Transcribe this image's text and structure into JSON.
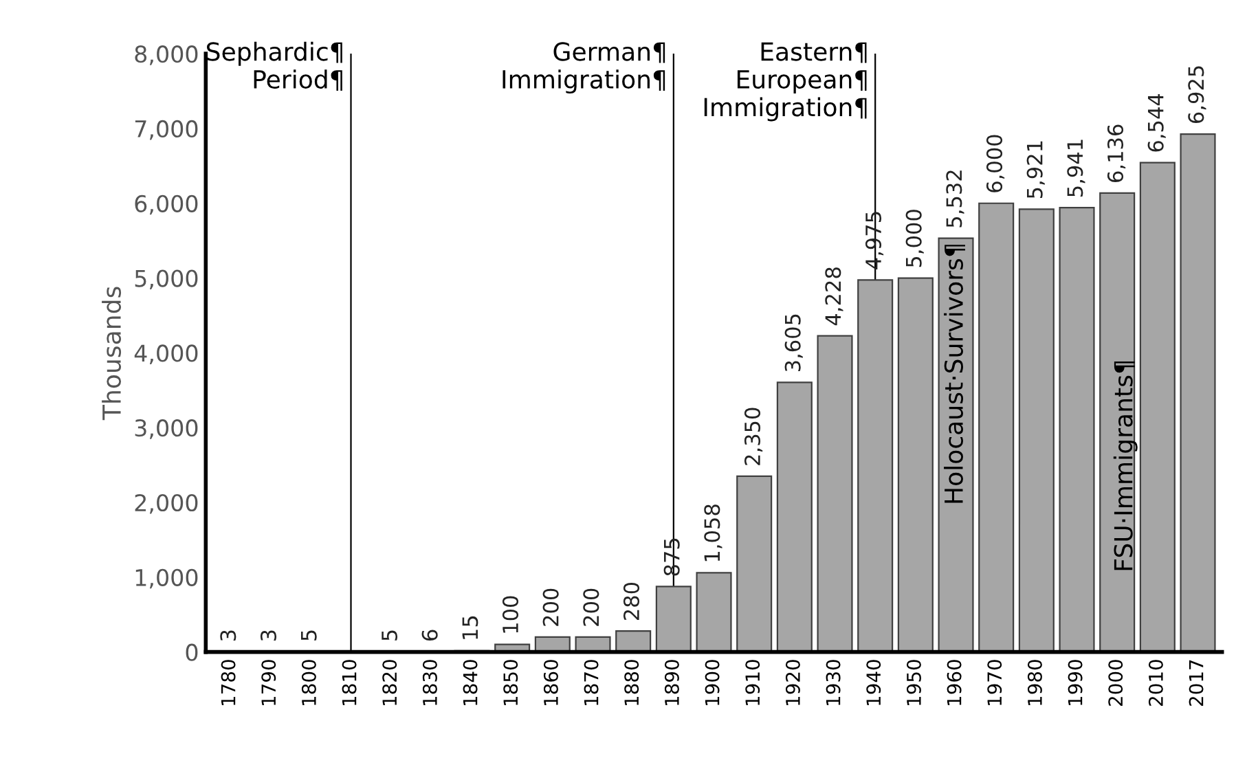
{
  "chart_data": {
    "type": "bar",
    "ylabel": "Thousands",
    "categories": [
      "1780",
      "1790",
      "1800",
      "1810",
      "1820",
      "1830",
      "1840",
      "1850",
      "1860",
      "1870",
      "1880",
      "1890",
      "1900",
      "1910",
      "1920",
      "1930",
      "1940",
      "1950",
      "1960",
      "1970",
      "1980",
      "1990",
      "2000",
      "2010",
      "2017"
    ],
    "values": [
      3,
      3,
      5,
      null,
      5,
      6,
      15,
      100,
      200,
      200,
      280,
      875,
      1058,
      2350,
      3605,
      4228,
      4975,
      5000,
      5532,
      6000,
      5921,
      5941,
      6136,
      6544,
      6925
    ],
    "value_labels": [
      "3",
      "3",
      "5",
      null,
      "5",
      "6",
      "15",
      "100",
      "200",
      "200",
      "280",
      "875",
      "1,058",
      "2,350",
      "3,605",
      "4,228",
      "4,975",
      "5,000",
      "5,532",
      "6,000",
      "5,921",
      "5,941",
      "6,136",
      "6,544",
      "6,925"
    ],
    "color": "#a6a6a6",
    "ylim": [
      0,
      8000
    ],
    "yticks": [
      {
        "value": 0,
        "label": "0"
      },
      {
        "value": 1000,
        "label": "1,000"
      },
      {
        "value": 2000,
        "label": "2,000"
      },
      {
        "value": 3000,
        "label": "3,000"
      },
      {
        "value": 4000,
        "label": "4,000"
      },
      {
        "value": 5000,
        "label": "5,000"
      },
      {
        "value": 6000,
        "label": "6,000"
      },
      {
        "value": 7000,
        "label": "7,000"
      },
      {
        "value": 8000,
        "label": "8,000"
      }
    ],
    "grid": false,
    "ref_lines": [
      {
        "axis": "x",
        "value": "1810",
        "label": "Sephardic¶\nPeriod¶",
        "color": "#000000"
      },
      {
        "axis": "x",
        "value": "1890",
        "label": "German¶\nImmigration¶",
        "color": "#000000"
      },
      {
        "axis": "x",
        "value": "1940",
        "label": "Eastern¶\nEuropean¶\nImmigration¶",
        "color": "#000000"
      }
    ],
    "annotations": [
      {
        "text": "Holocaust·Survivors¶",
        "x": "1960",
        "y": 5532
      },
      "FSU·Immigrants¶"
    ]
  }
}
